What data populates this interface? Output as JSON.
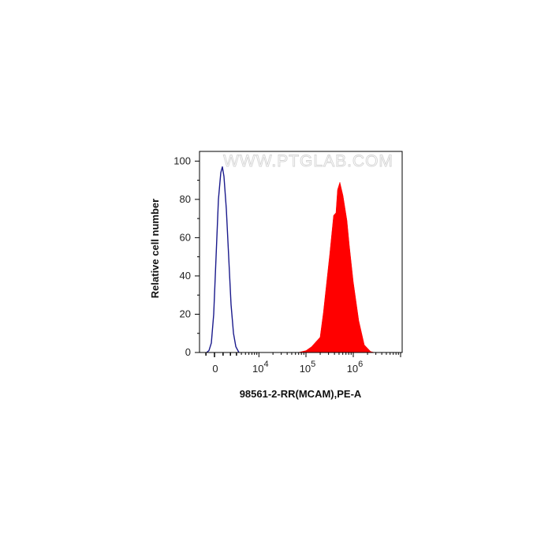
{
  "chart_data": {
    "type": "area",
    "title": "",
    "xlabel": "98561-2-RR(MCAM),PE-A",
    "ylabel": "Relative cell number",
    "x_scale": "biexponential",
    "xlim": [
      -1850,
      10800000
    ],
    "ylim": [
      0,
      105
    ],
    "y_ticks": [
      0,
      20,
      40,
      60,
      80,
      100
    ],
    "x_ticks": [
      {
        "value": 0,
        "base": "0",
        "exp": ""
      },
      {
        "value": 10000,
        "base": "10",
        "exp": "4"
      },
      {
        "value": 100000,
        "base": "10",
        "exp": "5"
      },
      {
        "value": 1000000,
        "base": "10",
        "exp": "6"
      }
    ],
    "grid": false,
    "watermark": "WWW.PTGLAB.COM",
    "series": [
      {
        "style": "outline",
        "color": "#1a1a8c",
        "x": [
          -917,
          -634,
          -359,
          -90,
          179,
          448,
          728,
          917,
          1112,
          1418,
          1744,
          2092,
          2474,
          2880,
          3475
        ],
        "y": [
          0,
          1,
          5,
          20,
          50,
          80,
          94,
          97,
          92,
          75,
          50,
          25,
          10,
          3,
          0
        ]
      },
      {
        "style": "filled",
        "color": "#ff0000",
        "x": [
          68100,
          100000,
          131000,
          199000,
          233000,
          316000,
          383000,
          430000,
          464000,
          521000,
          607000,
          736000,
          825000,
          1000000,
          1308000,
          1712000,
          2326000,
          2818000
        ],
        "y": [
          0,
          1,
          3,
          8,
          20.7,
          51,
          71.6,
          73,
          85,
          89,
          82,
          69,
          56,
          37,
          16.6,
          4,
          0.5,
          0
        ]
      }
    ]
  }
}
